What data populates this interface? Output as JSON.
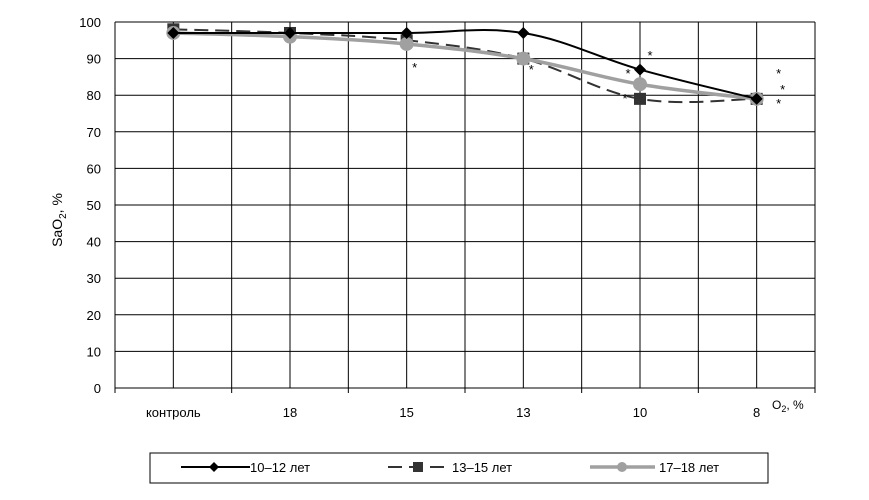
{
  "chart_data": {
    "type": "line",
    "categories": [
      "контроль",
      "18",
      "15",
      "13",
      "10",
      "8"
    ],
    "ylabel_main": "SaO",
    "ylabel_sub": "2",
    "ylabel_unit": ", %",
    "xlabel_main": "O",
    "xlabel_sub": "2",
    "xlabel_unit": ", %",
    "ylim": [
      0,
      100
    ],
    "yticks": [
      0,
      10,
      20,
      30,
      40,
      50,
      60,
      70,
      80,
      90,
      100
    ],
    "grid": true,
    "legend_position": "bottom",
    "series": [
      {
        "name": "10–12 лет",
        "values": [
          97,
          97,
          97,
          97,
          87,
          79
        ],
        "color": "#000000",
        "style": "solid",
        "marker": "diamond"
      },
      {
        "name": "13–15 лет",
        "values": [
          98,
          97,
          95,
          90,
          79,
          79
        ],
        "color": "#333333",
        "style": "dashed",
        "marker": "square"
      },
      {
        "name": "17–18 лет",
        "values": [
          97,
          96,
          94,
          90,
          83,
          79
        ],
        "color": "#a0a0a0",
        "style": "solid",
        "marker": "circle"
      }
    ],
    "annotations": [
      "*",
      "*",
      "*",
      "*",
      "*",
      "*",
      "*",
      "*"
    ]
  }
}
